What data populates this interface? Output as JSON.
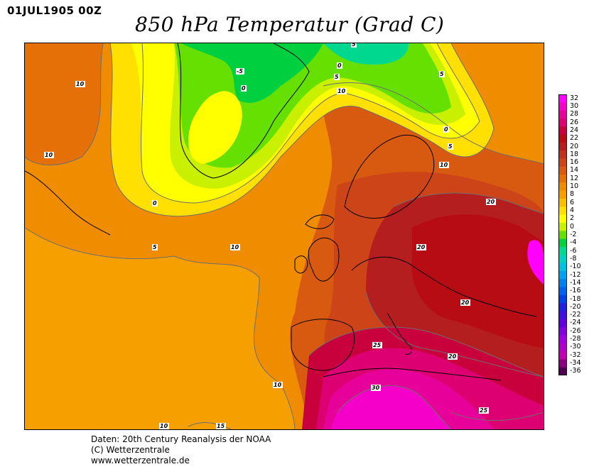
{
  "header": {
    "timestamp": "01JUL1905 00Z",
    "title": "850 hPa Temperatur (Grad C)"
  },
  "legend": {
    "levels": [
      "32",
      "30",
      "28",
      "26",
      "24",
      "22",
      "20",
      "18",
      "16",
      "14",
      "12",
      "10",
      "8",
      "6",
      "4",
      "2",
      "0",
      "-2",
      "-4",
      "-6",
      "-8",
      "-10",
      "-12",
      "-14",
      "-16",
      "-18",
      "-20",
      "-22",
      "-24",
      "-26",
      "-28",
      "-30",
      "-32",
      "-34",
      "-36"
    ],
    "colors": [
      "#ff00ff",
      "#f400c8",
      "#e8009b",
      "#dd0073",
      "#c8003c",
      "#b80c14",
      "#b41e1e",
      "#c03220",
      "#cc4418",
      "#d85a10",
      "#e67008",
      "#f08c00",
      "#f5a000",
      "#fac000",
      "#ffe000",
      "#ffff00",
      "#c8f000",
      "#66e000",
      "#00d040",
      "#00d890",
      "#00d0c0",
      "#00c0e0",
      "#00a0f0",
      "#0080f0",
      "#0060f0",
      "#0040e8",
      "#2020e0",
      "#4010e0",
      "#6000e0",
      "#8000e0",
      "#a000e0",
      "#b000c8",
      "#c000b0",
      "#8a0080",
      "#500050"
    ]
  },
  "contour_labels": [
    "10",
    "10",
    "5",
    "0",
    "-5",
    "0",
    "0",
    "5",
    "10",
    "5",
    "0",
    "5",
    "10",
    "10",
    "5",
    "10",
    "20",
    "20",
    "20",
    "25",
    "30",
    "20",
    "25",
    "10",
    "15"
  ],
  "credits": {
    "line1": "Daten: 20th Century Reanalysis der NOAA",
    "line2": "(C) Wetterzentrale",
    "line3": "www.wetterzentrale.de"
  }
}
